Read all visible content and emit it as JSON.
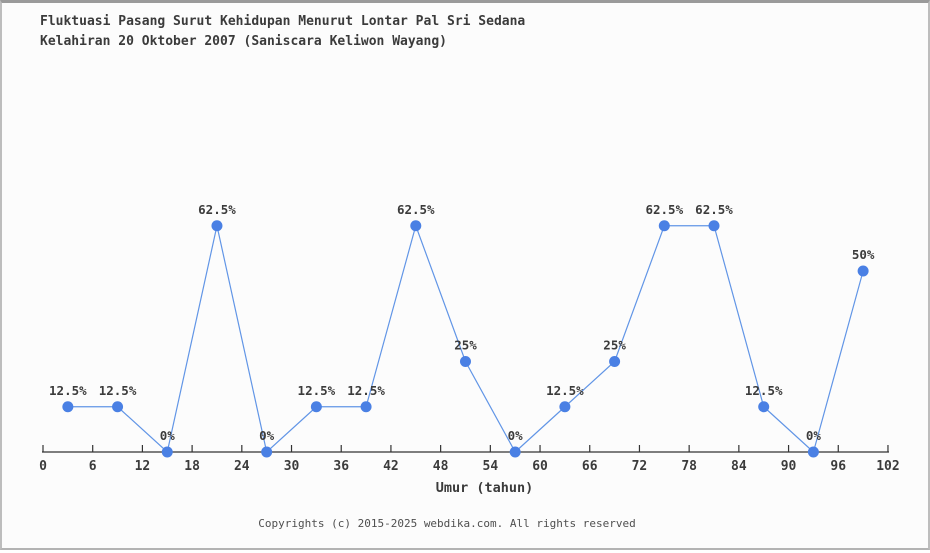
{
  "page": {
    "background": "#fcfcfc",
    "border_color": "#9a9a9a"
  },
  "header": {
    "title_line1": "Fluktuasi Pasang Surut Kehidupan Menurut Lontar Pal Sri Sedana",
    "title_line2": "Kelahiran 20 Oktober 2007 (Saniscara Keliwon Wayang)"
  },
  "chart_data": {
    "type": "line",
    "title": "Fluktuasi Pasang Surut Kehidupan Menurut Lontar Pal Sri Sedana Kelahiran 20 Oktober 2007 (Saniscara Keliwon Wayang)",
    "x": [
      3,
      9,
      15,
      21,
      27,
      33,
      39,
      45,
      51,
      57,
      63,
      69,
      75,
      81,
      87,
      93,
      99
    ],
    "values": [
      12.5,
      12.5,
      0,
      62.5,
      0,
      12.5,
      12.5,
      62.5,
      25,
      0,
      12.5,
      25,
      62.5,
      62.5,
      12.5,
      0,
      50
    ],
    "point_labels": [
      "12.5%",
      "12.5%",
      "0%",
      "62.5%",
      "0%",
      "12.5%",
      "12.5%",
      "62.5%",
      "25%",
      "0%",
      "12.5%",
      "25%",
      "62.5%",
      "62.5%",
      "12.5%",
      "0%",
      "50%"
    ],
    "x_ticks": [
      0,
      6,
      12,
      18,
      24,
      30,
      36,
      42,
      48,
      54,
      60,
      66,
      72,
      78,
      84,
      90,
      96,
      102
    ],
    "xlabel": "Umur (tahun)",
    "ylabel": "",
    "xlim": [
      0,
      102
    ],
    "ylim": [
      0,
      70
    ],
    "grid": false,
    "legend": "none",
    "colors": {
      "marker": "#4a80e4",
      "line": "#6195e6",
      "text": "#3b3b3b",
      "axis": "#333333"
    }
  },
  "footer": {
    "copyright": "Copyrights (c) 2015-2025 webdika.com. All rights reserved"
  }
}
